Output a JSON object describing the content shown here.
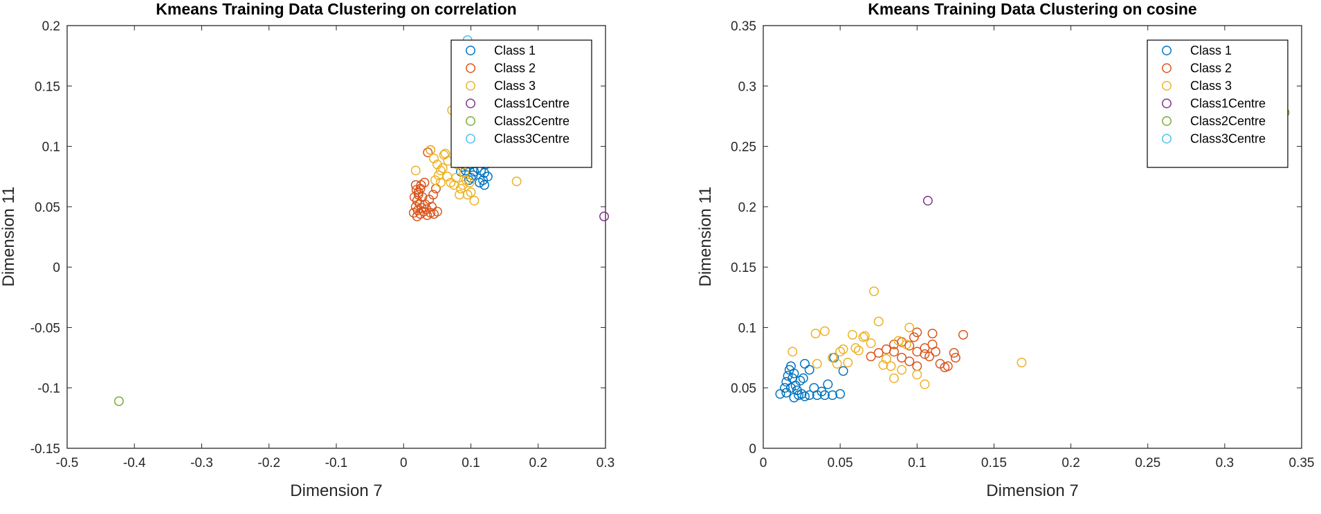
{
  "colors": {
    "class1": "#0072BD",
    "class2": "#D95319",
    "class3": "#EDB120",
    "class1_centre": "#7E2F8E",
    "class2_centre": "#77AC30",
    "class3_centre": "#4DBEEE"
  },
  "chart_data": [
    {
      "type": "scatter",
      "title": "Kmeans Training Data Clustering on correlation",
      "xlabel": "Dimension 7",
      "ylabel": "Dimension 11",
      "xlim": [
        -0.5,
        0.3
      ],
      "ylim": [
        -0.15,
        0.2
      ],
      "xticks": [
        "-0.5",
        "-0.4",
        "-0.3",
        "-0.2",
        "-0.1",
        "0",
        "0.1",
        "0.2",
        "0.3"
      ],
      "yticks": [
        "-0.15",
        "-0.1",
        "-0.05",
        "0",
        "0.05",
        "0.1",
        "0.15",
        "0.2"
      ],
      "grid": false,
      "legend": "top-right",
      "series": [
        {
          "name": "Class 1",
          "color_key": "class1",
          "points": [
            [
              0.095,
              0.083
            ],
            [
              0.1,
              0.085
            ],
            [
              0.105,
              0.079
            ],
            [
              0.11,
              0.082
            ],
            [
              0.115,
              0.08
            ],
            [
              0.12,
              0.078
            ],
            [
              0.125,
              0.075
            ],
            [
              0.1,
              0.074
            ],
            [
              0.098,
              0.088
            ],
            [
              0.108,
              0.087
            ],
            [
              0.113,
              0.07
            ],
            [
              0.118,
              0.072
            ],
            [
              0.092,
              0.08
            ],
            [
              0.088,
              0.083
            ],
            [
              0.12,
              0.068
            ],
            [
              0.103,
              0.076
            ],
            [
              0.11,
              0.09
            ],
            [
              0.122,
              0.085
            ],
            [
              0.097,
              0.072
            ],
            [
              0.085,
              0.079
            ]
          ]
        },
        {
          "name": "Class 2",
          "color_key": "class2",
          "points": [
            [
              0.015,
              0.045
            ],
            [
              0.018,
              0.05
            ],
            [
              0.02,
              0.055
            ],
            [
              0.022,
              0.06
            ],
            [
              0.025,
              0.065
            ],
            [
              0.02,
              0.042
            ],
            [
              0.025,
              0.044
            ],
            [
              0.03,
              0.046
            ],
            [
              0.035,
              0.043
            ],
            [
              0.04,
              0.045
            ],
            [
              0.045,
              0.044
            ],
            [
              0.05,
              0.046
            ],
            [
              0.018,
              0.068
            ],
            [
              0.022,
              0.062
            ],
            [
              0.028,
              0.058
            ],
            [
              0.032,
              0.052
            ],
            [
              0.038,
              0.056
            ],
            [
              0.042,
              0.05
            ],
            [
              0.024,
              0.052
            ],
            [
              0.016,
              0.058
            ],
            [
              0.021,
              0.047
            ],
            [
              0.027,
              0.049
            ],
            [
              0.031,
              0.07
            ],
            [
              0.036,
              0.095
            ],
            [
              0.04,
              0.097
            ],
            [
              0.048,
              0.065
            ],
            [
              0.044,
              0.06
            ],
            [
              0.019,
              0.064
            ],
            [
              0.026,
              0.068
            ],
            [
              0.034,
              0.048
            ]
          ]
        },
        {
          "name": "Class 3",
          "color_key": "class3",
          "points": [
            [
              0.04,
              0.097
            ],
            [
              0.045,
              0.09
            ],
            [
              0.05,
              0.085
            ],
            [
              0.055,
              0.08
            ],
            [
              0.06,
              0.093
            ],
            [
              0.065,
              0.075
            ],
            [
              0.07,
              0.07
            ],
            [
              0.075,
              0.068
            ],
            [
              0.08,
              0.085
            ],
            [
              0.085,
              0.065
            ],
            [
              0.09,
              0.078
            ],
            [
              0.095,
              0.06
            ],
            [
              0.1,
              0.062
            ],
            [
              0.105,
              0.055
            ],
            [
              0.168,
              0.071
            ],
            [
              0.072,
              0.13
            ],
            [
              0.058,
              0.082
            ],
            [
              0.066,
              0.088
            ],
            [
              0.052,
              0.076
            ],
            [
              0.078,
              0.074
            ],
            [
              0.083,
              0.06
            ],
            [
              0.062,
              0.094
            ],
            [
              0.088,
              0.068
            ],
            [
              0.093,
              0.072
            ],
            [
              0.098,
              0.07
            ],
            [
              0.055,
              0.07
            ],
            [
              0.047,
              0.072
            ],
            [
              0.018,
              0.08
            ]
          ]
        },
        {
          "name": "Class1Centre",
          "color_key": "class1_centre",
          "points": [
            [
              0.298,
              0.042
            ]
          ]
        },
        {
          "name": "Class2Centre",
          "color_key": "class2_centre",
          "points": [
            [
              -0.423,
              -0.111
            ]
          ]
        },
        {
          "name": "Class3Centre",
          "color_key": "class3_centre",
          "points": [
            [
              0.095,
              0.188
            ]
          ]
        }
      ]
    },
    {
      "type": "scatter",
      "title": "Kmeans Training Data Clustering on cosine",
      "xlabel": "Dimension 7",
      "ylabel": "Dimension 11",
      "xlim": [
        0,
        0.35
      ],
      "ylim": [
        0,
        0.35
      ],
      "xticks": [
        "0",
        "0.05",
        "0.1",
        "0.15",
        "0.2",
        "0.25",
        "0.3",
        "0.35"
      ],
      "yticks": [
        "0",
        "0.05",
        "0.1",
        "0.15",
        "0.2",
        "0.25",
        "0.3",
        "0.35"
      ],
      "grid": false,
      "legend": "top-right",
      "series": [
        {
          "name": "Class 1",
          "color_key": "class1",
          "points": [
            [
              0.011,
              0.045
            ],
            [
              0.014,
              0.05
            ],
            [
              0.015,
              0.055
            ],
            [
              0.016,
              0.06
            ],
            [
              0.017,
              0.065
            ],
            [
              0.018,
              0.068
            ],
            [
              0.02,
              0.062
            ],
            [
              0.019,
              0.058
            ],
            [
              0.021,
              0.052
            ],
            [
              0.022,
              0.048
            ],
            [
              0.023,
              0.044
            ],
            [
              0.025,
              0.045
            ],
            [
              0.027,
              0.043
            ],
            [
              0.03,
              0.044
            ],
            [
              0.035,
              0.044
            ],
            [
              0.04,
              0.044
            ],
            [
              0.045,
              0.044
            ],
            [
              0.05,
              0.045
            ],
            [
              0.052,
              0.064
            ],
            [
              0.046,
              0.075
            ],
            [
              0.03,
              0.065
            ],
            [
              0.027,
              0.07
            ],
            [
              0.024,
              0.056
            ],
            [
              0.02,
              0.042
            ],
            [
              0.018,
              0.05
            ],
            [
              0.026,
              0.058
            ],
            [
              0.033,
              0.05
            ],
            [
              0.038,
              0.047
            ],
            [
              0.042,
              0.053
            ],
            [
              0.015,
              0.046
            ]
          ]
        },
        {
          "name": "Class 2",
          "color_key": "class2",
          "points": [
            [
              0.07,
              0.076
            ],
            [
              0.075,
              0.079
            ],
            [
              0.08,
              0.082
            ],
            [
              0.085,
              0.086
            ],
            [
              0.09,
              0.088
            ],
            [
              0.095,
              0.085
            ],
            [
              0.1,
              0.08
            ],
            [
              0.105,
              0.083
            ],
            [
              0.11,
              0.086
            ],
            [
              0.115,
              0.07
            ],
            [
              0.12,
              0.068
            ],
            [
              0.125,
              0.075
            ],
            [
              0.13,
              0.094
            ],
            [
              0.1,
              0.096
            ],
            [
              0.09,
              0.075
            ],
            [
              0.095,
              0.072
            ],
            [
              0.1,
              0.068
            ],
            [
              0.105,
              0.078
            ],
            [
              0.11,
              0.095
            ],
            [
              0.112,
              0.08
            ],
            [
              0.118,
              0.067
            ],
            [
              0.124,
              0.079
            ],
            [
              0.085,
              0.08
            ],
            [
              0.098,
              0.092
            ],
            [
              0.108,
              0.076
            ]
          ]
        },
        {
          "name": "Class 3",
          "color_key": "class3",
          "points": [
            [
              0.019,
              0.08
            ],
            [
              0.034,
              0.095
            ],
            [
              0.04,
              0.097
            ],
            [
              0.045,
              0.075
            ],
            [
              0.05,
              0.08
            ],
            [
              0.055,
              0.071
            ],
            [
              0.06,
              0.083
            ],
            [
              0.065,
              0.092
            ],
            [
              0.07,
              0.087
            ],
            [
              0.075,
              0.105
            ],
            [
              0.08,
              0.074
            ],
            [
              0.085,
              0.058
            ],
            [
              0.09,
              0.065
            ],
            [
              0.095,
              0.1
            ],
            [
              0.1,
              0.061
            ],
            [
              0.105,
              0.053
            ],
            [
              0.072,
              0.13
            ],
            [
              0.168,
              0.071
            ],
            [
              0.058,
              0.094
            ],
            [
              0.066,
              0.093
            ],
            [
              0.052,
              0.082
            ],
            [
              0.078,
              0.069
            ],
            [
              0.088,
              0.089
            ],
            [
              0.093,
              0.086
            ],
            [
              0.062,
              0.081
            ],
            [
              0.035,
              0.07
            ],
            [
              0.048,
              0.07
            ],
            [
              0.083,
              0.068
            ]
          ]
        },
        {
          "name": "Class1Centre",
          "color_key": "class1_centre",
          "points": [
            [
              0.107,
              0.205
            ]
          ]
        },
        {
          "name": "Class2Centre",
          "color_key": "class2_centre",
          "points": [
            [
              0.339,
              0.278
            ]
          ]
        },
        {
          "name": "Class3Centre",
          "color_key": "class3_centre",
          "points": []
        }
      ]
    }
  ]
}
